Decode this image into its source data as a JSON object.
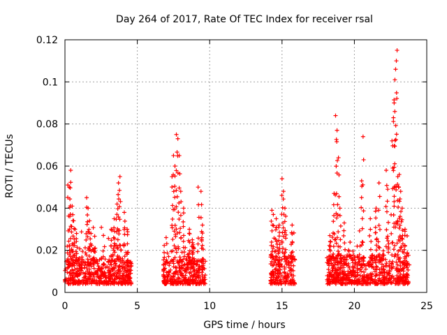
{
  "chart_data": {
    "type": "scatter",
    "title": "Day 264 of 2017, Rate Of TEC Index for receiver rsal",
    "xlabel": "GPS time / hours",
    "ylabel": "ROTI / TECUs",
    "xlim": [
      0,
      25
    ],
    "ylim": [
      0,
      0.12
    ],
    "xticks": [
      "0",
      "5",
      "10",
      "15",
      "20",
      "25"
    ],
    "yticks": [
      "0",
      "0.02",
      "0.04",
      "0.06",
      "0.08",
      "0.1",
      "0.12"
    ],
    "grid": true,
    "marker": "plus",
    "color": "#ff0000",
    "clusters": [
      {
        "x_range": [
          0.0,
          4.6
        ],
        "baseline": [
          0.004,
          0.016
        ]
      },
      {
        "x_range": [
          6.8,
          9.7
        ],
        "baseline": [
          0.004,
          0.016
        ]
      },
      {
        "x_range": [
          14.2,
          15.9
        ],
        "baseline": [
          0.004,
          0.018
        ]
      },
      {
        "x_range": [
          18.1,
          23.8
        ],
        "baseline": [
          0.004,
          0.018
        ]
      }
    ],
    "peaks": [
      [
        0.2,
        0.051
      ],
      [
        0.3,
        0.05
      ],
      [
        0.4,
        0.058
      ],
      [
        0.5,
        0.041
      ],
      [
        0.6,
        0.034
      ],
      [
        0.7,
        0.03
      ],
      [
        0.8,
        0.028
      ],
      [
        1.5,
        0.045
      ],
      [
        1.6,
        0.04
      ],
      [
        1.7,
        0.034
      ],
      [
        1.8,
        0.028
      ],
      [
        2.0,
        0.02
      ],
      [
        3.2,
        0.03
      ],
      [
        3.4,
        0.035
      ],
      [
        3.6,
        0.042
      ],
      [
        3.7,
        0.052
      ],
      [
        3.8,
        0.055
      ],
      [
        4.1,
        0.038
      ],
      [
        4.3,
        0.03
      ],
      [
        7.4,
        0.055
      ],
      [
        7.5,
        0.065
      ],
      [
        7.6,
        0.06
      ],
      [
        7.7,
        0.075
      ],
      [
        7.8,
        0.073
      ],
      [
        7.9,
        0.065
      ],
      [
        8.0,
        0.048
      ],
      [
        8.2,
        0.04
      ],
      [
        8.6,
        0.03
      ],
      [
        8.8,
        0.025
      ],
      [
        9.2,
        0.05
      ],
      [
        9.4,
        0.048
      ],
      [
        9.5,
        0.032
      ],
      [
        14.3,
        0.039
      ],
      [
        14.4,
        0.037
      ],
      [
        14.6,
        0.035
      ],
      [
        14.8,
        0.032
      ],
      [
        15.0,
        0.054
      ],
      [
        15.1,
        0.048
      ],
      [
        15.2,
        0.04
      ],
      [
        15.7,
        0.032
      ],
      [
        18.3,
        0.027
      ],
      [
        18.6,
        0.047
      ],
      [
        18.7,
        0.084
      ],
      [
        18.8,
        0.077
      ],
      [
        18.9,
        0.064
      ],
      [
        19.0,
        0.04
      ],
      [
        19.3,
        0.033
      ],
      [
        20.5,
        0.053
      ],
      [
        20.6,
        0.074
      ],
      [
        21.1,
        0.035
      ],
      [
        21.5,
        0.04
      ],
      [
        21.7,
        0.052
      ],
      [
        22.2,
        0.058
      ],
      [
        22.3,
        0.049
      ],
      [
        22.6,
        0.072
      ],
      [
        22.7,
        0.083
      ],
      [
        22.75,
        0.09
      ],
      [
        22.8,
        0.101
      ],
      [
        22.85,
        0.106
      ],
      [
        22.9,
        0.11
      ],
      [
        22.95,
        0.115
      ],
      [
        23.0,
        0.055
      ],
      [
        23.1,
        0.056
      ],
      [
        23.2,
        0.048
      ],
      [
        23.3,
        0.04
      ],
      [
        23.5,
        0.03
      ]
    ]
  }
}
